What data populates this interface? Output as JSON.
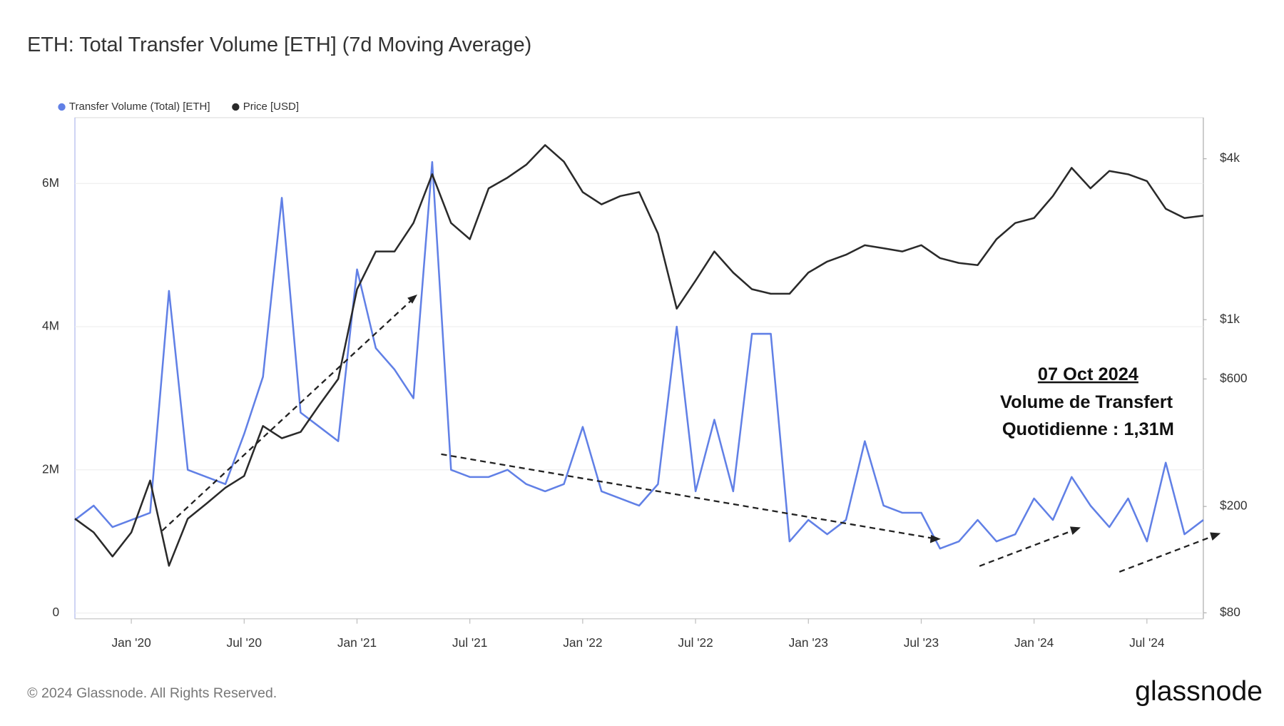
{
  "chart_data": {
    "type": "line",
    "title": "ETH: Total Transfer Volume [ETH] (7d Moving Average)",
    "x": [
      "2019-10",
      "2019-11",
      "2019-12",
      "2020-01",
      "2020-02",
      "2020-03",
      "2020-04",
      "2020-05",
      "2020-06",
      "2020-07",
      "2020-08",
      "2020-09",
      "2020-10",
      "2020-11",
      "2020-12",
      "2021-01",
      "2021-02",
      "2021-03",
      "2021-04",
      "2021-05",
      "2021-06",
      "2021-07",
      "2021-08",
      "2021-09",
      "2021-10",
      "2021-11",
      "2021-12",
      "2022-01",
      "2022-02",
      "2022-03",
      "2022-04",
      "2022-05",
      "2022-06",
      "2022-07",
      "2022-08",
      "2022-09",
      "2022-10",
      "2022-11",
      "2022-12",
      "2023-01",
      "2023-02",
      "2023-03",
      "2023-04",
      "2023-05",
      "2023-06",
      "2023-07",
      "2023-08",
      "2023-09",
      "2023-10",
      "2023-11",
      "2023-12",
      "2024-01",
      "2024-02",
      "2024-03",
      "2024-04",
      "2024-05",
      "2024-06",
      "2024-07",
      "2024-08",
      "2024-09",
      "2024-10"
    ],
    "series": [
      {
        "name": "Transfer Volume (Total) [ETH]",
        "color": "#6180e6",
        "values": [
          1300000,
          1500000,
          1200000,
          1300000,
          1400000,
          4500000,
          2000000,
          1900000,
          1800000,
          2500000,
          3300000,
          5800000,
          2800000,
          2600000,
          2400000,
          4800000,
          3700000,
          3400000,
          3000000,
          6300000,
          2000000,
          1900000,
          1900000,
          2000000,
          1800000,
          1700000,
          1800000,
          2600000,
          1700000,
          1600000,
          1500000,
          1800000,
          4000000,
          1700000,
          2700000,
          1700000,
          3900000,
          3900000,
          1000000,
          1300000,
          1100000,
          1300000,
          2400000,
          1500000,
          1400000,
          1400000,
          900000,
          1000000,
          1300000,
          1000000,
          1100000,
          1600000,
          1300000,
          1900000,
          1500000,
          1200000,
          1600000,
          1000000,
          2100000,
          1100000,
          1300000
        ]
      },
      {
        "name": "Price [USD]",
        "color": "#2a2a2a",
        "axis": "y2",
        "values": [
          180,
          160,
          130,
          160,
          250,
          120,
          180,
          205,
          235,
          260,
          400,
          360,
          380,
          480,
          600,
          1300,
          1800,
          1800,
          2300,
          3500,
          2300,
          2000,
          3100,
          3400,
          3800,
          4500,
          3900,
          3000,
          2700,
          2900,
          3000,
          2100,
          1100,
          1400,
          1800,
          1500,
          1300,
          1250,
          1250,
          1500,
          1650,
          1750,
          1900,
          1850,
          1800,
          1900,
          1700,
          1630,
          1600,
          2000,
          2300,
          2400,
          2900,
          3700,
          3100,
          3600,
          3500,
          3300,
          2600,
          2400,
          2450
        ]
      }
    ],
    "xlim": [
      "2019-10",
      "2024-10"
    ],
    "xticks": [
      {
        "value": "2020-01",
        "label": "Jan '20"
      },
      {
        "value": "2020-07",
        "label": "Jul '20"
      },
      {
        "value": "2021-01",
        "label": "Jan '21"
      },
      {
        "value": "2021-07",
        "label": "Jul '21"
      },
      {
        "value": "2022-01",
        "label": "Jan '22"
      },
      {
        "value": "2022-07",
        "label": "Jul '22"
      },
      {
        "value": "2023-01",
        "label": "Jan '23"
      },
      {
        "value": "2023-07",
        "label": "Jul '23"
      },
      {
        "value": "2024-01",
        "label": "Jan '24"
      },
      {
        "value": "2024-07",
        "label": "Jul '24"
      }
    ],
    "ylim": [
      -80000,
      6920000
    ],
    "yticks": [
      0,
      {
        "value": 2000000,
        "label": "2M"
      },
      {
        "value": 4000000,
        "label": "4M"
      },
      {
        "value": 6000000,
        "label": "6M"
      }
    ],
    "y2lim": [
      76,
      5700
    ],
    "y2scale": "log",
    "y2ticks": [
      {
        "value": 80,
        "label": "$80"
      },
      {
        "value": 200,
        "label": "$200"
      },
      {
        "value": 600,
        "label": "$600"
      },
      {
        "value": 1000,
        "label": "$1k"
      },
      {
        "value": 4000,
        "label": "$4k"
      }
    ],
    "grid": true,
    "annotation": [
      "07 Oct 2024",
      "Volume de Transfert",
      "Quotidienne : 1,31M"
    ]
  },
  "footer": "© 2024 Glassnode. All Rights Reserved.",
  "logo": "glassnode"
}
